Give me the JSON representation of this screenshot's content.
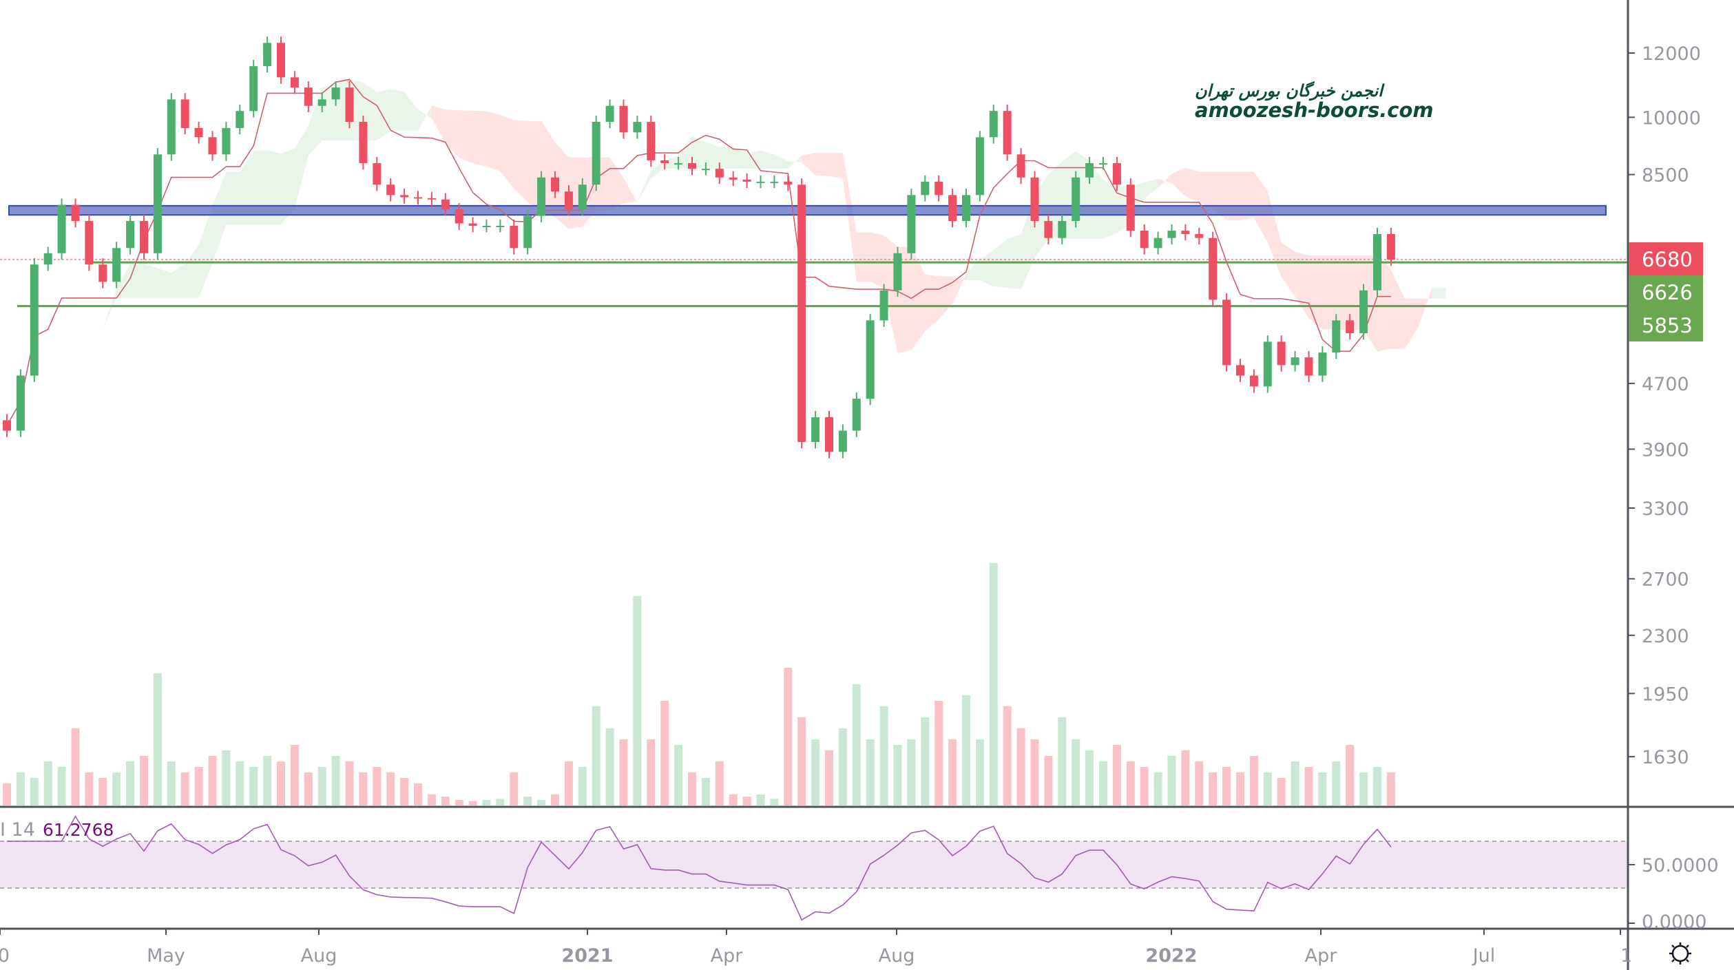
{
  "chart_data": {
    "type": "candlestick",
    "title": "",
    "y_axis": {
      "scale": "log",
      "ticks": [
        "12000",
        "10000",
        "8500",
        "4700",
        "3900",
        "3300",
        "2700",
        "2300",
        "1950",
        "1630"
      ]
    },
    "x_axis": {
      "ticks": [
        "0",
        "May",
        "Aug",
        "2021",
        "Apr",
        "Aug",
        "2022",
        "Apr",
        "Jul",
        "1"
      ]
    },
    "closes": [
      4110,
      4805,
      6585,
      6800,
      7800,
      7450,
      6585,
      6270,
      6900,
      7450,
      6800,
      9000,
      10520,
      9700,
      9450,
      9000,
      9700,
      10180,
      11560,
      12350,
      11200,
      10880,
      10330,
      10520,
      10880,
      9870,
      8780,
      8260,
      8020,
      7970,
      7950,
      7920,
      7700,
      7400,
      7350,
      7350,
      7350,
      6900,
      7560,
      8430,
      8100,
      7700,
      8260,
      9870,
      10330,
      9580,
      9870,
      8850,
      8780,
      8780,
      8640,
      8640,
      8430,
      8380,
      8330,
      8330,
      8330,
      8260,
      3980,
      4270,
      3870,
      4110,
      4500,
      5620,
      6120,
      6800,
      8020,
      8330,
      8020,
      7450,
      8020,
      9450,
      10180,
      9000,
      8430,
      7450,
      7100,
      7450,
      8430,
      8780,
      8780,
      8260,
      7250,
      6900,
      7100,
      7250,
      7180,
      7100,
      5960,
      4950,
      4805,
      4660,
      5290,
      4950,
      5060,
      4805,
      5130,
      5620,
      5420,
      6120,
      7180,
      6680
    ],
    "volumes": [
      20,
      30,
      25,
      40,
      35,
      70,
      30,
      25,
      30,
      40,
      45,
      120,
      40,
      30,
      35,
      45,
      50,
      40,
      35,
      45,
      40,
      55,
      30,
      35,
      45,
      40,
      30,
      35,
      30,
      25,
      20,
      10,
      8,
      5,
      4,
      5,
      6,
      30,
      8,
      5,
      10,
      40,
      35,
      90,
      70,
      60,
      190,
      60,
      95,
      55,
      30,
      25,
      40,
      10,
      8,
      10,
      6,
      125,
      80,
      60,
      50,
      70,
      110,
      60,
      90,
      55,
      60,
      80,
      95,
      60,
      100,
      60,
      220,
      90,
      70,
      60,
      45,
      80,
      60,
      50,
      40,
      55,
      40,
      35,
      30,
      45,
      50,
      40,
      30,
      35,
      30,
      45,
      30,
      25,
      40,
      35,
      30,
      40,
      55,
      30,
      35,
      30
    ],
    "last_price": "6680",
    "levels": [
      {
        "label": "6626",
        "price": 6626,
        "color": "#5aa14a"
      },
      {
        "label": "5853",
        "price": 5853,
        "color": "#5aa14a"
      }
    ],
    "zone": {
      "from": 7580,
      "to": 7780,
      "color": "#5c6bc0"
    },
    "rsi": {
      "label": "I 14",
      "value": "61.2768",
      "ticks": [
        "50.0000",
        "0.0000"
      ],
      "upper": 70,
      "lower": 30
    }
  },
  "colors": {
    "up": "#4caf6e",
    "down": "#ef4f62",
    "tag_red": "#ec4e5d",
    "tag_green": "#6aa84f"
  },
  "watermark": {
    "fa": "انجمن خبرگان بورس تهران",
    "en": "amoozesh-boors.com"
  }
}
